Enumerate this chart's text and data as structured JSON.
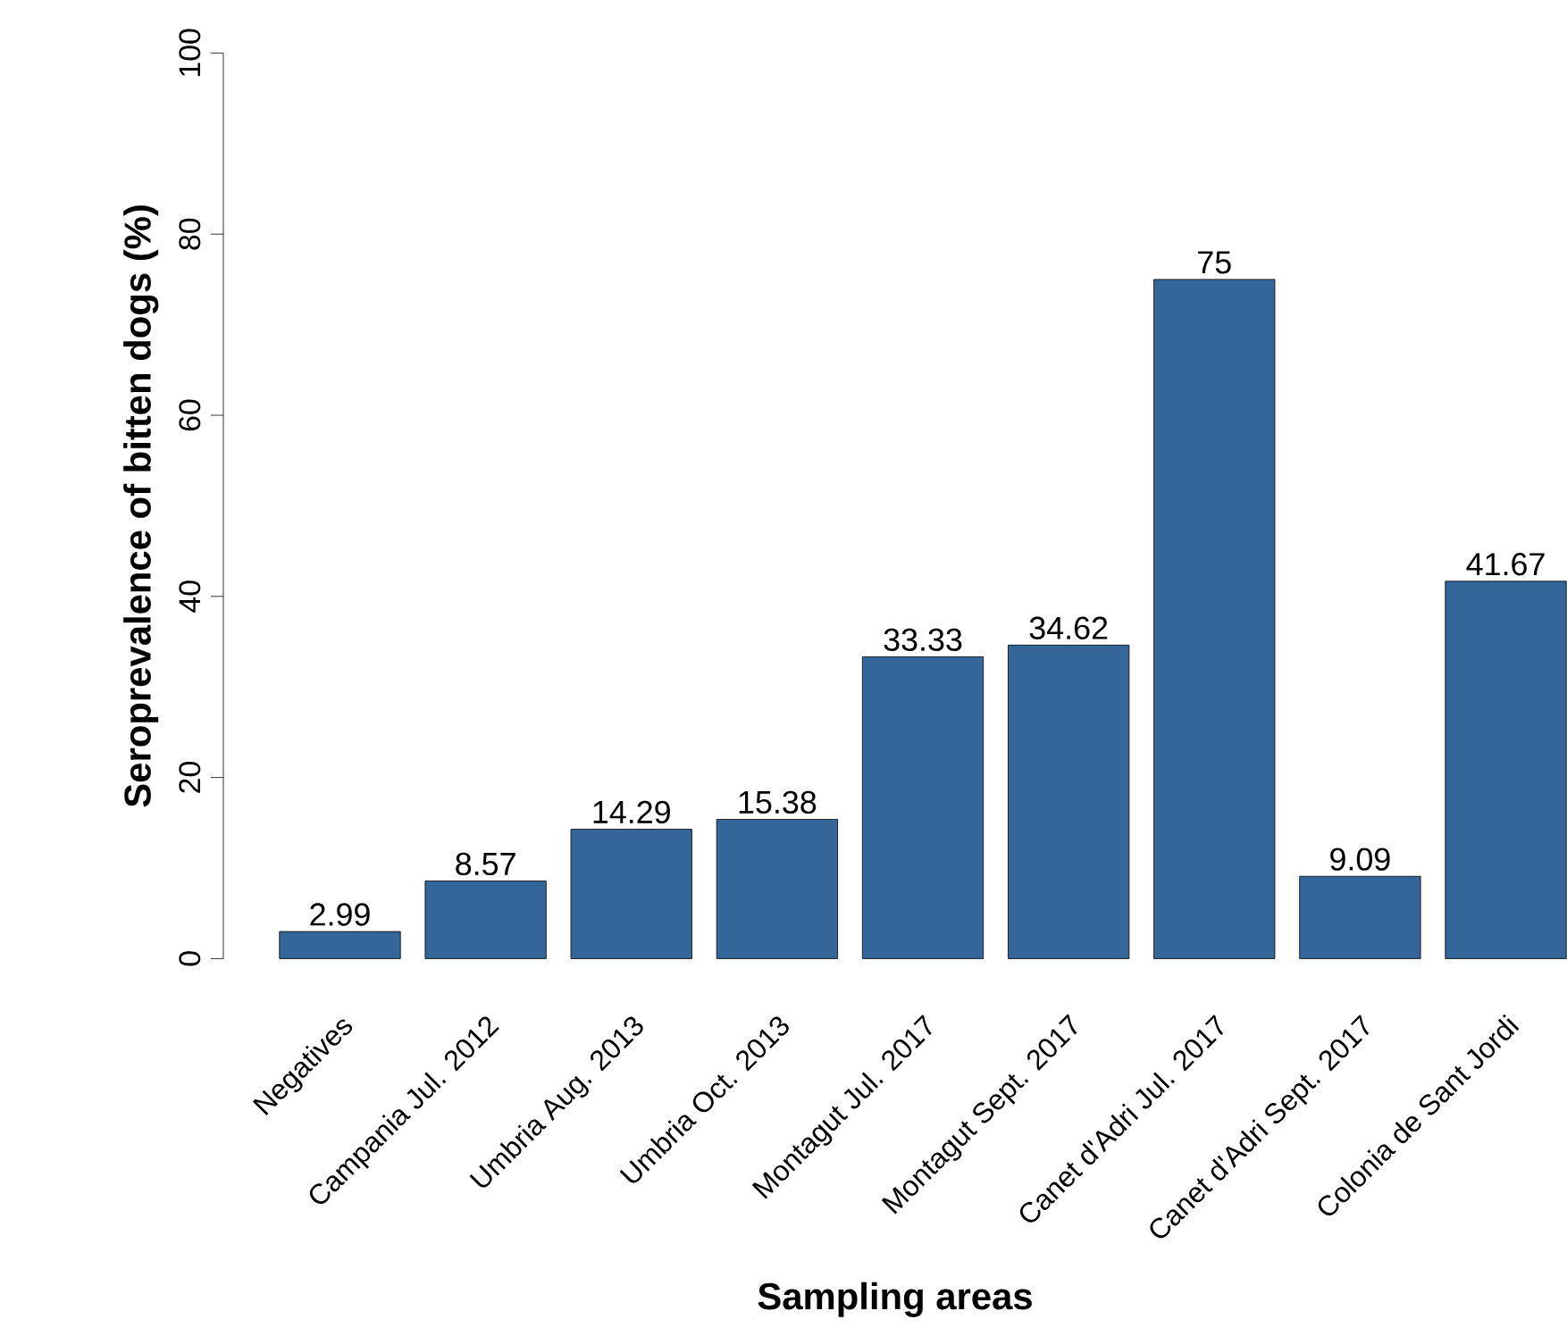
{
  "chart_data": {
    "type": "bar",
    "xlabel": "Sampling areas",
    "ylabel": "Seroprevalence of bitten dogs (%)",
    "categories": [
      "Negatives",
      "Campania Jul. 2012",
      "Umbria Aug. 2013",
      "Umbria Oct. 2013",
      "Montagut Jul. 2017",
      "Montagut Sept. 2017",
      "Canet d'Adri Jul. 2017",
      "Canet d'Adri Sept. 2017",
      "Colonia de Sant Jordi"
    ],
    "values": [
      2.99,
      8.57,
      14.29,
      15.38,
      33.33,
      34.62,
      75,
      9.09,
      41.67
    ],
    "color": "#34669a",
    "ylim": [
      0,
      100
    ],
    "yticks": [
      0,
      20,
      40,
      60,
      80,
      100
    ],
    "data_labels": true
  }
}
